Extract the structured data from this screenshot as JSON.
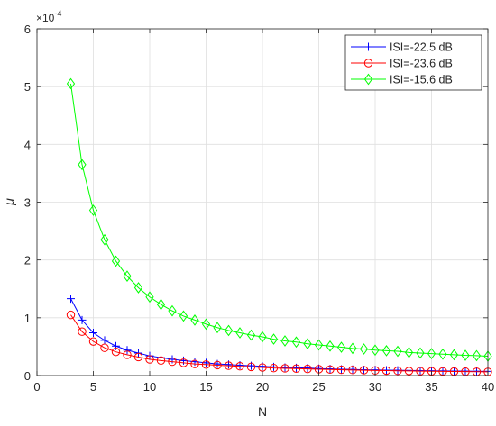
{
  "chart_data": {
    "type": "line",
    "xlabel": "N",
    "ylabel": "μ",
    "xlim": [
      0,
      40
    ],
    "ylim": [
      0,
      6
    ],
    "y_exponent_label": "×10",
    "y_exponent_power": "-4",
    "xticks": [
      0,
      5,
      10,
      15,
      20,
      25,
      30,
      35,
      40
    ],
    "yticks": [
      0,
      1,
      2,
      3,
      4,
      5,
      6
    ],
    "grid": true,
    "legend_position": "top-right",
    "x": [
      3,
      4,
      5,
      6,
      7,
      8,
      9,
      10,
      11,
      12,
      13,
      14,
      15,
      16,
      17,
      18,
      19,
      20,
      21,
      22,
      23,
      24,
      25,
      26,
      27,
      28,
      29,
      30,
      31,
      32,
      33,
      34,
      35,
      36,
      37,
      38,
      39,
      40
    ],
    "series": [
      {
        "name": "ISI=-22.5 dB",
        "color": "#0000ff",
        "marker": "plus",
        "values": [
          1.33,
          0.96,
          0.74,
          0.61,
          0.51,
          0.44,
          0.39,
          0.34,
          0.31,
          0.28,
          0.26,
          0.24,
          0.22,
          0.2,
          0.19,
          0.18,
          0.17,
          0.16,
          0.15,
          0.14,
          0.135,
          0.13,
          0.12,
          0.115,
          0.11,
          0.105,
          0.1,
          0.097,
          0.094,
          0.091,
          0.088,
          0.085,
          0.082,
          0.08,
          0.078,
          0.076,
          0.074,
          0.072
        ]
      },
      {
        "name": "ISI=-23.6 dB",
        "color": "#ff0000",
        "marker": "circle",
        "values": [
          1.05,
          0.76,
          0.59,
          0.48,
          0.41,
          0.36,
          0.32,
          0.28,
          0.26,
          0.24,
          0.22,
          0.2,
          0.19,
          0.18,
          0.17,
          0.16,
          0.15,
          0.14,
          0.13,
          0.125,
          0.12,
          0.115,
          0.11,
          0.105,
          0.1,
          0.096,
          0.092,
          0.088,
          0.085,
          0.082,
          0.079,
          0.076,
          0.074,
          0.072,
          0.07,
          0.068,
          0.066,
          0.064
        ]
      },
      {
        "name": "ISI=-15.6 dB",
        "color": "#00ff00",
        "marker": "diamond",
        "values": [
          5.05,
          3.65,
          2.86,
          2.35,
          1.98,
          1.72,
          1.52,
          1.36,
          1.23,
          1.12,
          1.03,
          0.96,
          0.89,
          0.83,
          0.78,
          0.74,
          0.7,
          0.67,
          0.63,
          0.6,
          0.58,
          0.55,
          0.53,
          0.51,
          0.49,
          0.47,
          0.46,
          0.44,
          0.43,
          0.42,
          0.4,
          0.39,
          0.38,
          0.37,
          0.36,
          0.35,
          0.345,
          0.335
        ]
      }
    ]
  }
}
